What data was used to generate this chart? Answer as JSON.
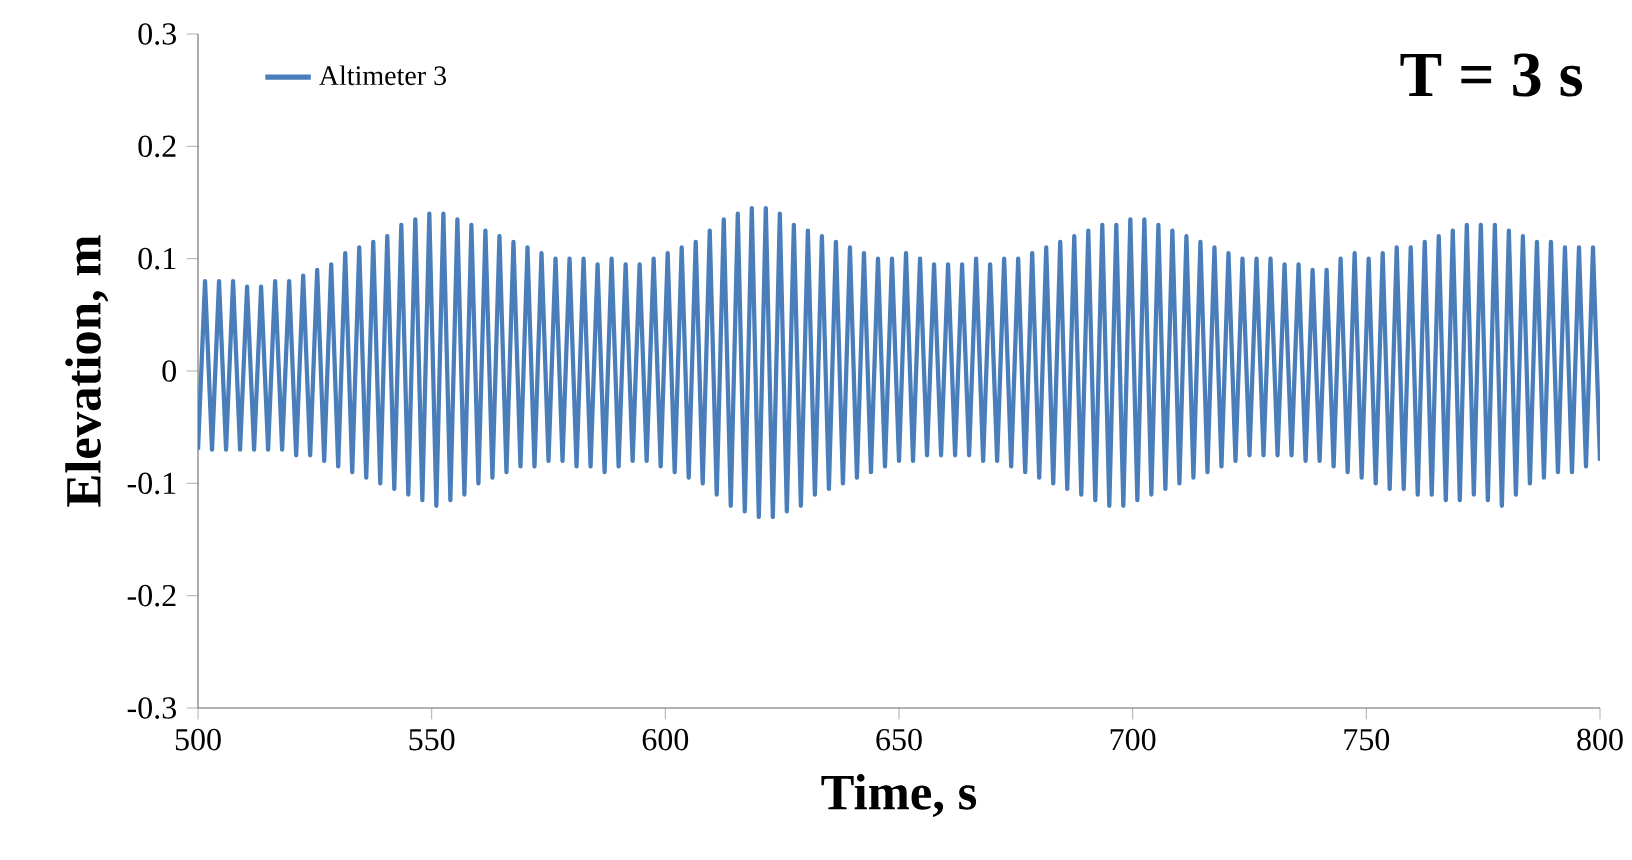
{
  "chart_data": {
    "type": "line",
    "xlabel": "Time, s",
    "ylabel": "Elevation, m",
    "annotations": [
      "T = 3 s"
    ],
    "xlim": [
      500,
      800
    ],
    "xticks": [
      500,
      550,
      600,
      650,
      700,
      750,
      800
    ],
    "ylim": [
      -0.3,
      0.3
    ],
    "yticks": [
      -0.3,
      -0.2,
      -0.1,
      0,
      0.1,
      0.2,
      0.3
    ],
    "grid": false,
    "legend": "top left",
    "marker": "none",
    "line_style": "solid",
    "x": [
      500,
      501.5,
      503,
      504.5,
      506,
      507.5,
      509,
      510.5,
      512,
      513.5,
      515,
      516.5,
      518,
      519.5,
      521,
      522.5,
      524,
      525.5,
      527,
      528.5,
      530,
      531.5,
      533,
      534.5,
      536,
      537.5,
      539,
      540.5,
      542,
      543.5,
      545,
      546.5,
      548,
      549.5,
      551,
      552.5,
      554,
      555.5,
      557,
      558.5,
      560,
      561.5,
      563,
      564.5,
      566,
      567.5,
      569,
      570.5,
      572,
      573.5,
      575,
      576.5,
      578,
      579.5,
      581,
      582.5,
      584,
      585.5,
      587,
      588.5,
      590,
      591.5,
      593,
      594.5,
      596,
      597.5,
      599,
      600.5,
      602,
      603.5,
      605,
      606.5,
      608,
      609.5,
      611,
      612.5,
      614,
      615.5,
      617,
      618.5,
      620,
      621.5,
      623,
      624.5,
      626,
      627.5,
      629,
      630.5,
      632,
      633.5,
      635,
      636.5,
      638,
      639.5,
      641,
      642.5,
      644,
      645.5,
      647,
      648.5,
      650,
      651.5,
      653,
      654.5,
      656,
      657.5,
      659,
      660.5,
      662,
      663.5,
      665,
      666.5,
      668,
      669.5,
      671,
      672.5,
      674,
      675.5,
      677,
      678.5,
      680,
      681.5,
      683,
      684.5,
      686,
      687.5,
      689,
      690.5,
      692,
      693.5,
      695,
      696.5,
      698,
      699.5,
      701,
      702.5,
      704,
      705.5,
      707,
      708.5,
      710,
      711.5,
      713,
      714.5,
      716,
      717.5,
      719,
      720.5,
      722,
      723.5,
      725,
      726.5,
      728,
      729.5,
      731,
      732.5,
      734,
      735.5,
      737,
      738.5,
      740,
      741.5,
      743,
      744.5,
      746,
      747.5,
      749,
      750.5,
      752,
      753.5,
      755,
      756.5,
      758,
      759.5,
      761,
      762.5,
      764,
      765.5,
      767,
      768.5,
      770,
      771.5,
      773,
      774.5,
      776,
      777.5,
      779,
      780.5,
      782,
      783.5,
      785,
      786.5,
      788,
      789.5,
      791,
      792.5,
      794,
      795.5,
      797,
      798.5,
      800
    ],
    "series": [
      {
        "name": "Altimeter 3",
        "color": "#4a7ebb",
        "values": [
          -0.07,
          0.08,
          -0.07,
          0.08,
          -0.07,
          0.08,
          -0.07,
          0.075,
          -0.07,
          0.075,
          -0.07,
          0.08,
          -0.07,
          0.08,
          -0.075,
          0.085,
          -0.075,
          0.09,
          -0.08,
          0.095,
          -0.085,
          0.105,
          -0.09,
          0.11,
          -0.095,
          0.115,
          -0.1,
          0.12,
          -0.105,
          0.13,
          -0.11,
          0.135,
          -0.115,
          0.14,
          -0.12,
          0.14,
          -0.115,
          0.135,
          -0.11,
          0.13,
          -0.1,
          0.125,
          -0.095,
          0.12,
          -0.09,
          0.115,
          -0.085,
          0.11,
          -0.085,
          0.105,
          -0.08,
          0.1,
          -0.08,
          0.1,
          -0.085,
          0.1,
          -0.085,
          0.095,
          -0.09,
          0.1,
          -0.085,
          0.095,
          -0.08,
          0.095,
          -0.08,
          0.1,
          -0.085,
          0.105,
          -0.09,
          0.11,
          -0.095,
          0.115,
          -0.1,
          0.125,
          -0.11,
          0.135,
          -0.12,
          0.14,
          -0.125,
          0.145,
          -0.13,
          0.145,
          -0.13,
          0.14,
          -0.125,
          0.13,
          -0.12,
          0.125,
          -0.11,
          0.12,
          -0.105,
          0.115,
          -0.1,
          0.11,
          -0.095,
          0.105,
          -0.09,
          0.1,
          -0.085,
          0.1,
          -0.08,
          0.105,
          -0.08,
          0.1,
          -0.075,
          0.095,
          -0.075,
          0.095,
          -0.075,
          0.095,
          -0.075,
          0.1,
          -0.08,
          0.095,
          -0.08,
          0.1,
          -0.085,
          0.1,
          -0.09,
          0.105,
          -0.095,
          0.11,
          -0.1,
          0.115,
          -0.105,
          0.12,
          -0.11,
          0.125,
          -0.115,
          0.13,
          -0.12,
          0.13,
          -0.12,
          0.135,
          -0.115,
          0.135,
          -0.11,
          0.13,
          -0.105,
          0.125,
          -0.1,
          0.12,
          -0.095,
          0.115,
          -0.09,
          0.11,
          -0.085,
          0.105,
          -0.08,
          0.1,
          -0.075,
          0.1,
          -0.075,
          0.1,
          -0.075,
          0.095,
          -0.075,
          0.095,
          -0.08,
          0.09,
          -0.08,
          0.09,
          -0.085,
          0.1,
          -0.09,
          0.105,
          -0.095,
          0.1,
          -0.1,
          0.105,
          -0.105,
          0.11,
          -0.105,
          0.11,
          -0.11,
          0.115,
          -0.11,
          0.12,
          -0.115,
          0.125,
          -0.115,
          0.13,
          -0.11,
          0.13,
          -0.115,
          0.13,
          -0.12,
          0.125,
          -0.11,
          0.12,
          -0.1,
          0.115,
          -0.095,
          0.115,
          -0.09,
          0.11,
          -0.09,
          0.11,
          -0.085,
          0.11,
          -0.08
        ]
      }
    ]
  }
}
